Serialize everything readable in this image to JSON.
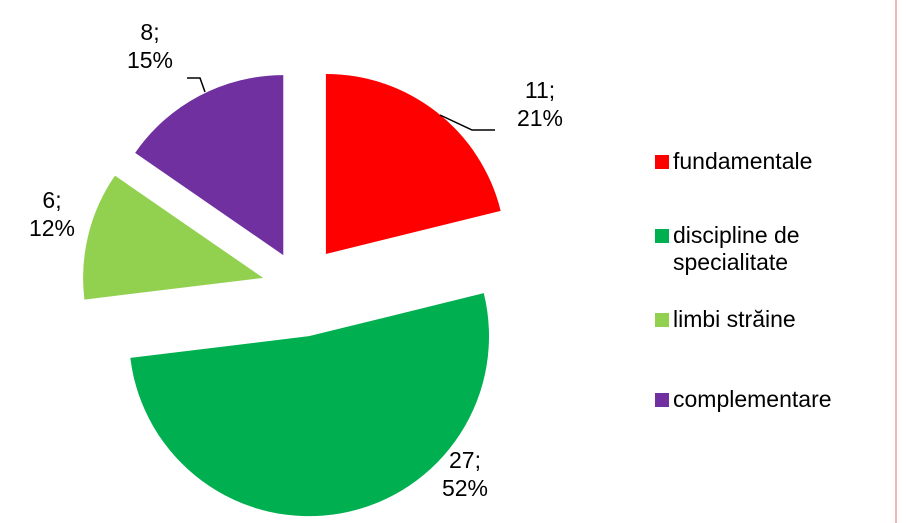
{
  "chart_data": {
    "type": "pie",
    "categories": [
      "fundamentale",
      "discipline de specialitate",
      "limbi străine",
      "complementare"
    ],
    "values": [
      11,
      27,
      6,
      8
    ],
    "value_labels": [
      "11; 21%",
      "27; 52%",
      "6; 12%",
      "8; 15%"
    ],
    "colors": [
      "#ff0000",
      "#00b050",
      "#92d050",
      "#7030a0"
    ],
    "legend": "right"
  }
}
